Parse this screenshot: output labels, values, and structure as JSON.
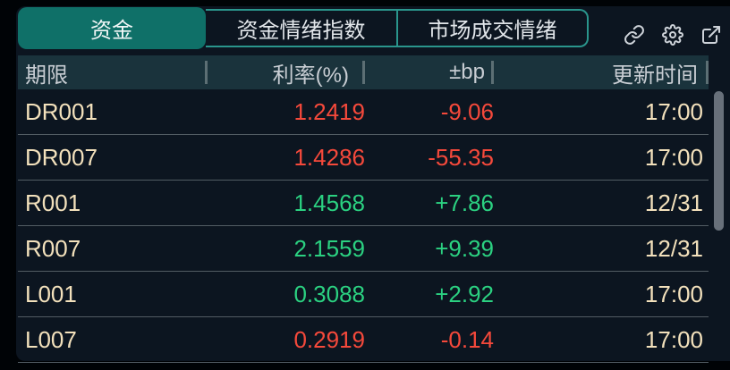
{
  "tabs": {
    "items": [
      {
        "label": "资金",
        "active": true
      },
      {
        "label": "资金情绪指数",
        "active": false
      },
      {
        "label": "市场成交情绪",
        "active": false
      }
    ]
  },
  "toolbar": {
    "icons": [
      "link-icon",
      "gear-icon",
      "external-link-icon"
    ]
  },
  "table": {
    "columns": [
      {
        "label": "期限",
        "align": "left"
      },
      {
        "label": "利率(%)",
        "align": "right"
      },
      {
        "label": "±bp",
        "align": "right"
      },
      {
        "label": "更新时间",
        "align": "right"
      }
    ],
    "rows": [
      {
        "term": "DR001",
        "rate": "1.2419",
        "bp": "-9.06",
        "time": "17:00",
        "trend": "down"
      },
      {
        "term": "DR007",
        "rate": "1.4286",
        "bp": "-55.35",
        "time": "17:00",
        "trend": "down"
      },
      {
        "term": "R001",
        "rate": "1.4568",
        "bp": "+7.86",
        "time": "12/31",
        "trend": "up"
      },
      {
        "term": "R007",
        "rate": "2.1559",
        "bp": "+9.39",
        "time": "12/31",
        "trend": "up"
      },
      {
        "term": "L001",
        "rate": "0.3088",
        "bp": "+2.92",
        "time": "17:00",
        "trend": "up"
      },
      {
        "term": "L007",
        "rate": "0.2919",
        "bp": "-0.14",
        "time": "17:00",
        "trend": "down"
      }
    ]
  },
  "colors": {
    "panel_bg": "#0c1520",
    "header_bg": "#1a333c",
    "accent_teal": "#0f7068",
    "tab_border": "#2a958c",
    "up_green": "#2bd181",
    "down_red": "#f5493b",
    "label_cream": "#f3e1bc"
  }
}
